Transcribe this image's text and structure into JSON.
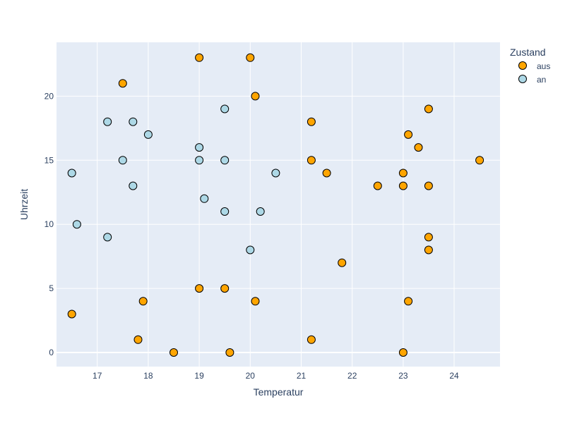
{
  "chart_data": {
    "type": "scatter",
    "xlabel": "Temperatur",
    "ylabel": "Uhrzeit",
    "xlim": [
      16.2,
      24.9
    ],
    "ylim": [
      -1.1,
      24.2
    ],
    "xticks": [
      17,
      18,
      19,
      20,
      21,
      22,
      23,
      24
    ],
    "yticks": [
      0,
      5,
      10,
      15,
      20
    ],
    "grid": true,
    "legend": {
      "title": "Zustand",
      "position": "top-right"
    },
    "series": [
      {
        "name": "aus",
        "color": "#FFA500",
        "points": [
          {
            "x": 19.0,
            "y": 23
          },
          {
            "x": 20.0,
            "y": 23
          },
          {
            "x": 17.5,
            "y": 21
          },
          {
            "x": 20.1,
            "y": 20
          },
          {
            "x": 23.5,
            "y": 19
          },
          {
            "x": 21.2,
            "y": 18
          },
          {
            "x": 23.1,
            "y": 17
          },
          {
            "x": 23.3,
            "y": 16
          },
          {
            "x": 21.2,
            "y": 15
          },
          {
            "x": 24.5,
            "y": 15
          },
          {
            "x": 21.5,
            "y": 14
          },
          {
            "x": 23.0,
            "y": 14
          },
          {
            "x": 22.5,
            "y": 13
          },
          {
            "x": 23.0,
            "y": 13
          },
          {
            "x": 23.5,
            "y": 13
          },
          {
            "x": 23.5,
            "y": 9
          },
          {
            "x": 23.5,
            "y": 8
          },
          {
            "x": 21.8,
            "y": 7
          },
          {
            "x": 19.0,
            "y": 5
          },
          {
            "x": 19.5,
            "y": 5
          },
          {
            "x": 17.9,
            "y": 4
          },
          {
            "x": 20.1,
            "y": 4
          },
          {
            "x": 23.1,
            "y": 4
          },
          {
            "x": 16.5,
            "y": 3
          },
          {
            "x": 17.8,
            "y": 1
          },
          {
            "x": 21.2,
            "y": 1
          },
          {
            "x": 18.5,
            "y": 0
          },
          {
            "x": 19.6,
            "y": 0
          },
          {
            "x": 23.0,
            "y": 0
          }
        ]
      },
      {
        "name": "an",
        "color": "#ADD8E6",
        "points": [
          {
            "x": 19.5,
            "y": 19
          },
          {
            "x": 17.2,
            "y": 18
          },
          {
            "x": 17.7,
            "y": 18
          },
          {
            "x": 18.0,
            "y": 17
          },
          {
            "x": 19.0,
            "y": 16
          },
          {
            "x": 17.5,
            "y": 15
          },
          {
            "x": 19.0,
            "y": 15
          },
          {
            "x": 19.5,
            "y": 15
          },
          {
            "x": 16.5,
            "y": 14
          },
          {
            "x": 20.5,
            "y": 14
          },
          {
            "x": 17.7,
            "y": 13
          },
          {
            "x": 19.1,
            "y": 12
          },
          {
            "x": 19.5,
            "y": 11
          },
          {
            "x": 20.2,
            "y": 11
          },
          {
            "x": 16.6,
            "y": 10
          },
          {
            "x": 17.2,
            "y": 9
          },
          {
            "x": 20.0,
            "y": 8
          }
        ]
      }
    ]
  }
}
